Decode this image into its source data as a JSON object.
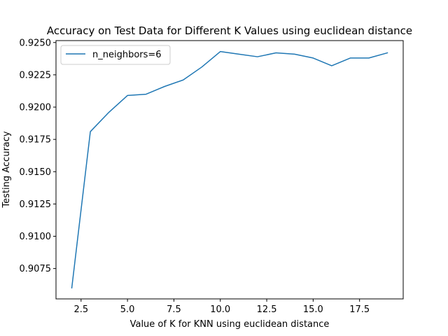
{
  "chart_data": {
    "type": "line",
    "title": "Accuracy on Test Data for Different K Values using euclidean distance",
    "xlabel": "Value of K for KNN using euclidean distance",
    "ylabel": "Testing Accuracy",
    "xlim": [
      1.15,
      19.85
    ],
    "ylim": [
      0.90515,
      0.92515
    ],
    "xticks": [
      2.5,
      5.0,
      7.5,
      10.0,
      12.5,
      15.0,
      17.5
    ],
    "xtick_labels": [
      "2.5",
      "5.0",
      "7.5",
      "10.0",
      "12.5",
      "15.0",
      "17.5"
    ],
    "yticks": [
      0.9075,
      0.91,
      0.9125,
      0.915,
      0.9175,
      0.92,
      0.9225,
      0.925
    ],
    "ytick_labels": [
      "0.9075",
      "0.9100",
      "0.9125",
      "0.9150",
      "0.9175",
      "0.9200",
      "0.9225",
      "0.9250"
    ],
    "grid": false,
    "legend_position": "top-left",
    "series": [
      {
        "name": "n_neighbors=6",
        "color": "#1f77b4",
        "x": [
          2,
          3,
          4,
          5,
          6,
          7,
          8,
          9,
          10,
          11,
          12,
          13,
          14,
          15,
          16,
          17,
          18,
          19
        ],
        "y": [
          0.906,
          0.9181,
          0.9196,
          0.9209,
          0.921,
          0.9216,
          0.9221,
          0.9231,
          0.9243,
          0.9241,
          0.9239,
          0.9242,
          0.9241,
          0.9238,
          0.9232,
          0.9238,
          0.9238,
          0.9242
        ]
      }
    ]
  }
}
